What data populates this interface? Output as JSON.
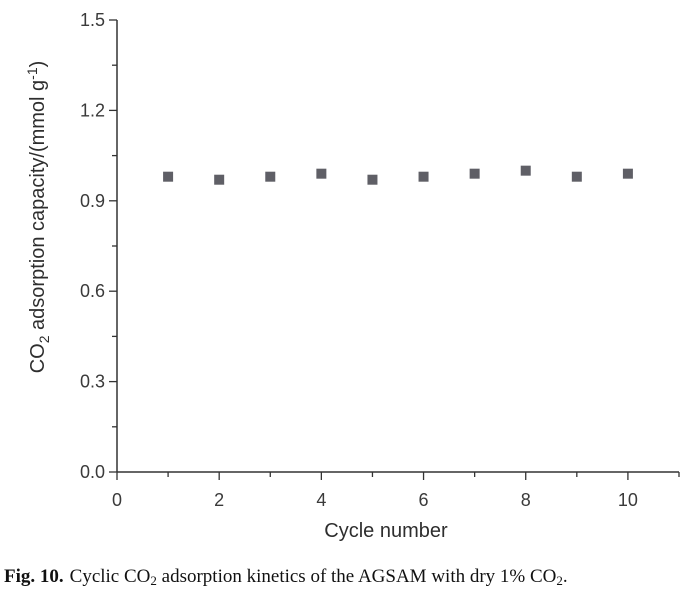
{
  "chart_data": {
    "type": "scatter",
    "x": [
      1,
      2,
      3,
      4,
      5,
      6,
      7,
      8,
      9,
      10
    ],
    "y": [
      0.98,
      0.97,
      0.98,
      0.99,
      0.97,
      0.98,
      0.99,
      1.0,
      0.98,
      0.99
    ],
    "xlabel": "Cycle number",
    "ylabel": {
      "main_before": "CO",
      "subscript": "2",
      "main_after": " adsorption capacity/(mmol g",
      "superscript": "-1",
      "close": ")"
    },
    "xlim": [
      0,
      11
    ],
    "ylim": [
      0,
      1.5
    ],
    "xticks": [
      0,
      2,
      4,
      6,
      8,
      10
    ],
    "yticks": [
      0.0,
      0.3,
      0.6,
      0.9,
      1.2,
      1.5
    ],
    "xtick_labels": [
      "0",
      "2",
      "4",
      "6",
      "8",
      "10"
    ],
    "ytick_labels": [
      "0.0",
      "0.3",
      "0.6",
      "0.9",
      "1.2",
      "1.5"
    ],
    "grid": false,
    "marker": "square",
    "marker_color": "#5f5f66",
    "axis_color": "#333333"
  },
  "caption": {
    "label": "Fig. 10.",
    "text_1": "Cyclic CO",
    "sub_1": "2",
    "text_2": " adsorption kinetics of the AGSAM with dry 1% CO",
    "sub_2": "2",
    "text_3": "."
  }
}
